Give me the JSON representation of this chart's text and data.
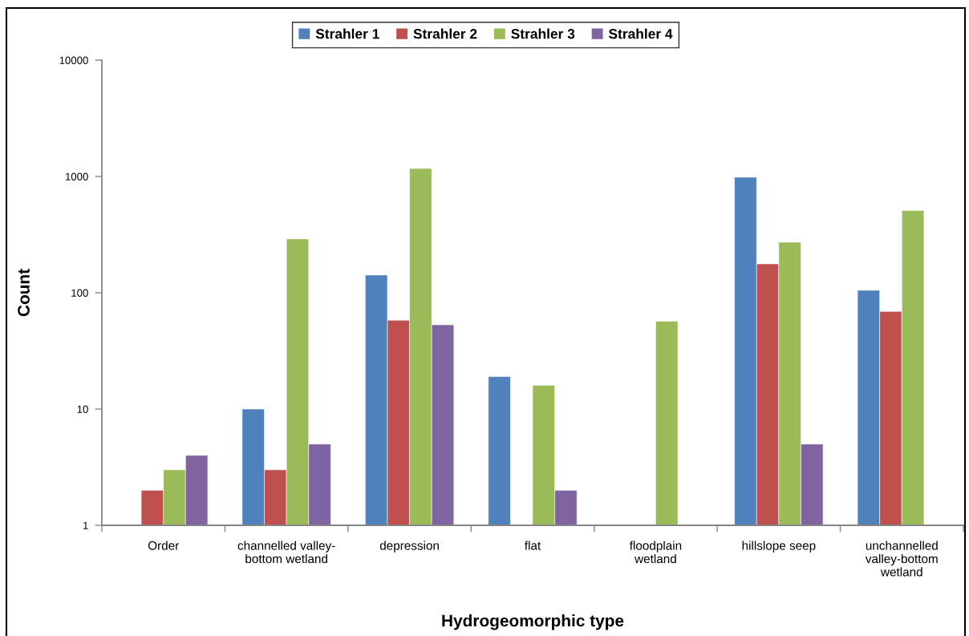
{
  "chart_data": {
    "type": "bar",
    "xlabel": "Hydrogeomorphic type",
    "ylabel": "Count",
    "categories": [
      "Order",
      "channelled valley-\nbottom wetland",
      "depression",
      "flat",
      "floodplain\nwetland",
      "hillslope seep",
      "unchannelled\nvalley-bottom\nwetland"
    ],
    "series": [
      {
        "name": "Strahler 1",
        "color": "#4f81bd",
        "values": [
          null,
          10,
          142,
          19,
          null,
          985,
          105
        ]
      },
      {
        "name": "Strahler 2",
        "color": "#c0504d",
        "values": [
          2,
          3,
          58,
          null,
          null,
          177,
          69
        ]
      },
      {
        "name": "Strahler 3",
        "color": "#9bbb59",
        "values": [
          3,
          290,
          1170,
          16,
          57,
          272,
          510
        ]
      },
      {
        "name": "Strahler 4",
        "color": "#8064a2",
        "values": [
          4,
          5,
          53,
          2,
          null,
          5,
          null
        ]
      }
    ],
    "log": true,
    "ylim": [
      1,
      10000
    ],
    "yticks": [
      1,
      10,
      100,
      1000,
      10000
    ],
    "grid": false,
    "legend": "top"
  }
}
